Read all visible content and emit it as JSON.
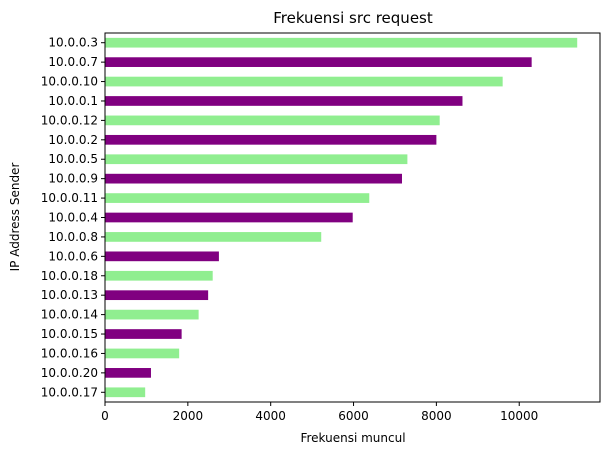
{
  "chart_data": {
    "type": "bar",
    "orientation": "horizontal",
    "title": "Frekuensi src request",
    "xlabel": "Frekuensi muncul",
    "ylabel": "IP Address Sender",
    "categories": [
      "10.0.0.3",
      "10.0.0.7",
      "10.0.0.10",
      "10.0.0.1",
      "10.0.0.12",
      "10.0.0.2",
      "10.0.0.5",
      "10.0.0.9",
      "10.0.0.11",
      "10.0.0.4",
      "10.0.0.8",
      "10.0.0.6",
      "10.0.0.18",
      "10.0.0.13",
      "10.0.0.14",
      "10.0.0.15",
      "10.0.0.16",
      "10.0.0.20",
      "10.0.0.17"
    ],
    "values": [
      11400,
      10300,
      9600,
      8630,
      8080,
      8000,
      7300,
      7170,
      6380,
      5980,
      5220,
      2750,
      2600,
      2490,
      2260,
      1850,
      1790,
      1110,
      970
    ],
    "bar_colors": [
      "#90ee90",
      "#800080"
    ],
    "xlim": [
      0,
      11950
    ],
    "xticks": [
      0,
      2000,
      4000,
      6000,
      8000,
      10000
    ],
    "grid": false,
    "legend": "none"
  }
}
